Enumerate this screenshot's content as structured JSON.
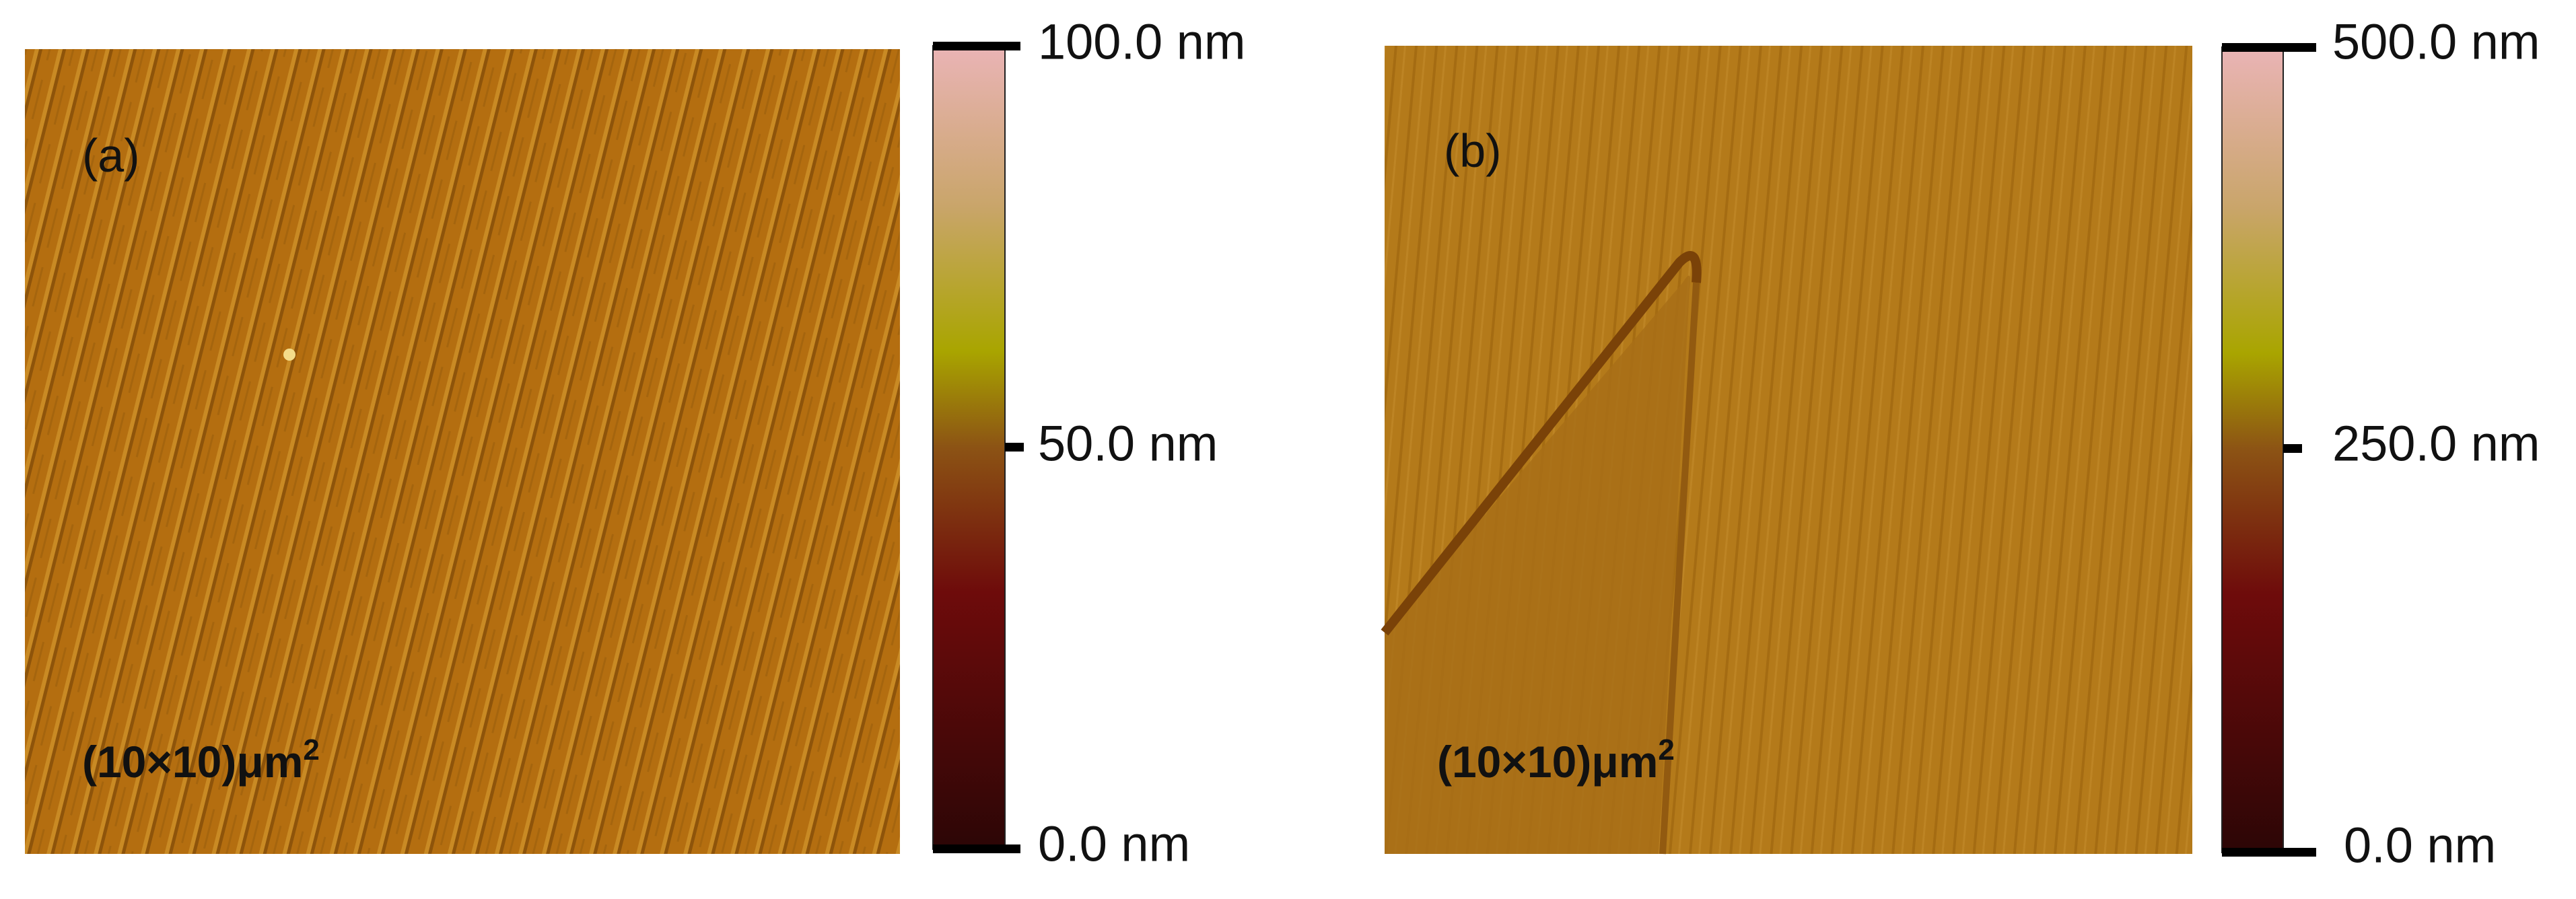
{
  "panels": [
    {
      "label": "(a)",
      "scale": {
        "text": "(10×10)μm",
        "sup": "2"
      },
      "colorbar": {
        "ticks": [
          "100.0 nm",
          "50.0 nm",
          "0.0 nm"
        ]
      }
    },
    {
      "label": "(b)",
      "scale": {
        "text": "(10×10)μm",
        "sup": "2"
      },
      "colorbar": {
        "ticks": [
          "500.0 nm",
          "250.0 nm",
          "0.0 nm"
        ]
      }
    }
  ]
}
